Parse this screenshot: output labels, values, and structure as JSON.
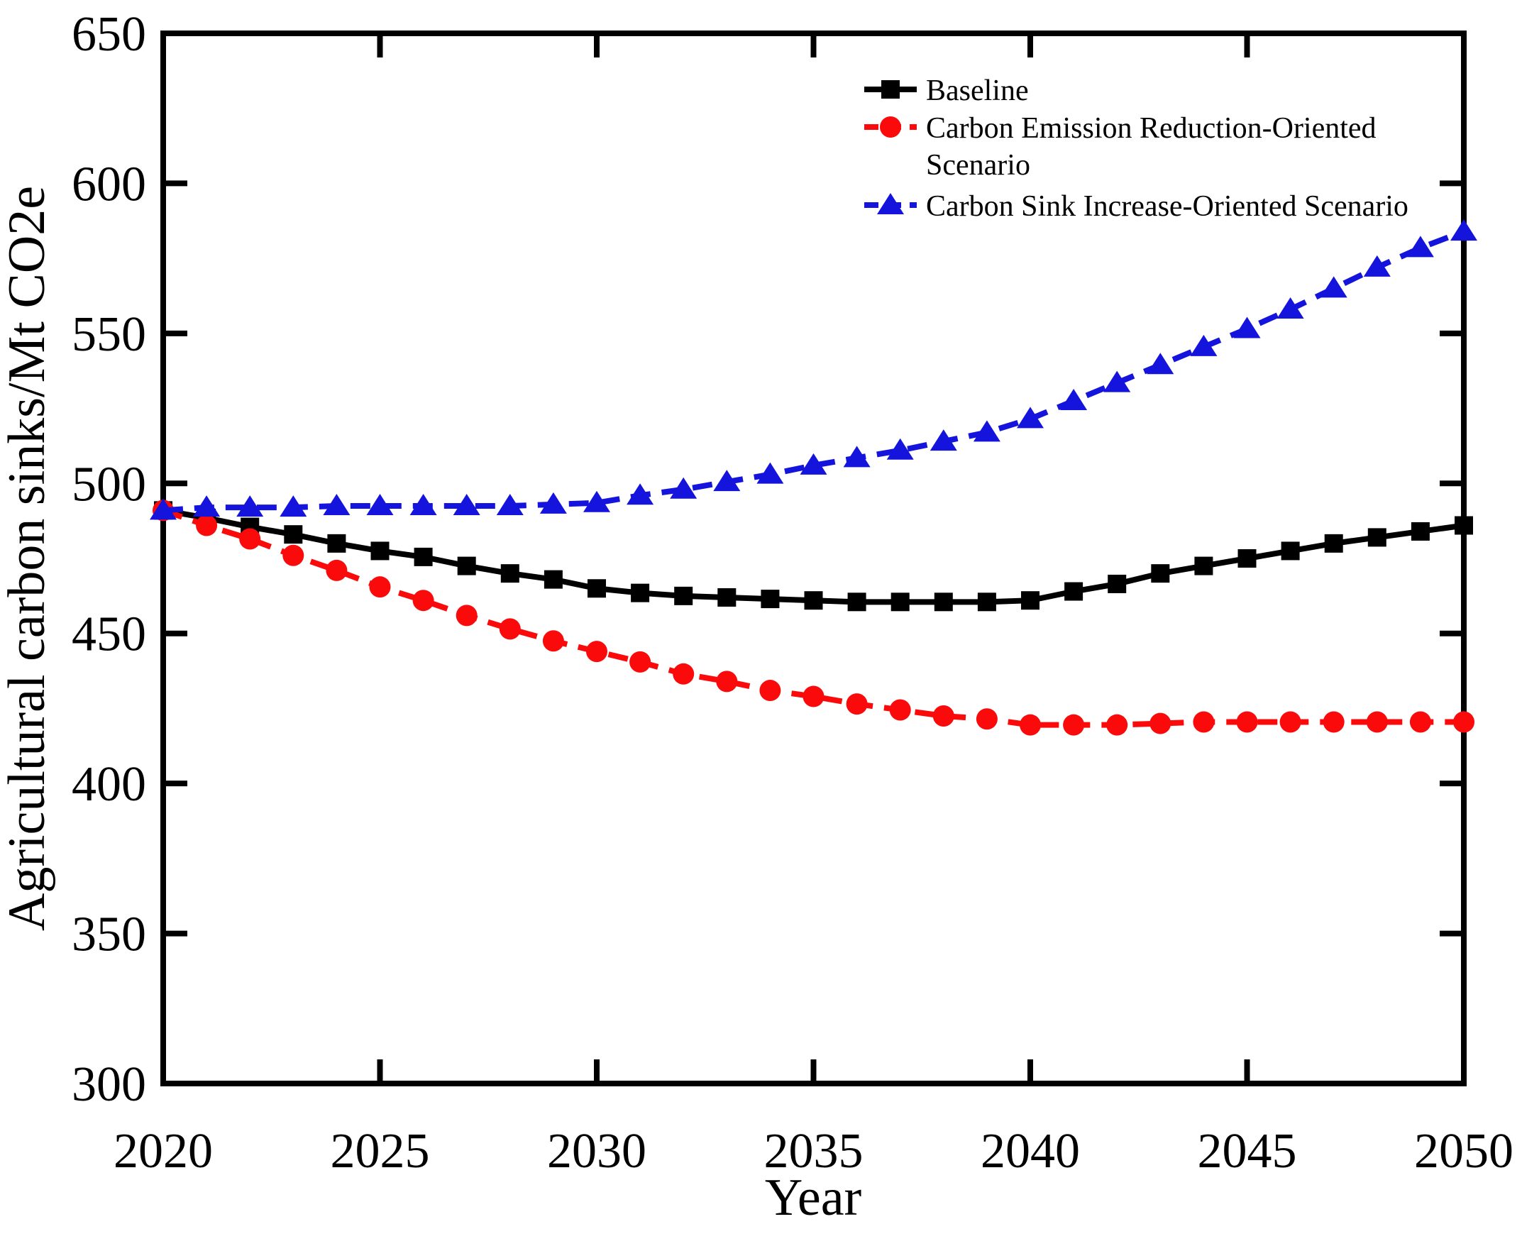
{
  "chart_data": {
    "type": "line",
    "title": "",
    "xlabel": "Year",
    "ylabel": "Agricultural carbon sinks/Mt CO2e",
    "xlim": [
      2020,
      2050
    ],
    "ylim": [
      300,
      650
    ],
    "xticks": [
      2020,
      2025,
      2030,
      2035,
      2040,
      2045,
      2050
    ],
    "yticks": [
      300,
      350,
      400,
      450,
      500,
      550,
      600,
      650
    ],
    "grid": false,
    "tick_direction": "in",
    "legend_position": "upper-right-inside",
    "frame_color": "#000000",
    "x": [
      2020,
      2021,
      2022,
      2023,
      2024,
      2025,
      2026,
      2027,
      2028,
      2029,
      2030,
      2031,
      2032,
      2033,
      2034,
      2035,
      2036,
      2037,
      2038,
      2039,
      2040,
      2041,
      2042,
      2043,
      2044,
      2045,
      2046,
      2047,
      2048,
      2049,
      2050
    ],
    "series": [
      {
        "name": "Baseline",
        "legend_lines": [
          "Baseline"
        ],
        "color": "#000000",
        "marker": "square",
        "line_style": "solid",
        "values": [
          491,
          488.5,
          485.5,
          483,
          480,
          477.5,
          475.5,
          472.5,
          470,
          468,
          465,
          463.5,
          462.5,
          462,
          461.5,
          461,
          460.5,
          460.5,
          460.5,
          460.5,
          461,
          464,
          466.5,
          470,
          472.5,
          475,
          477.5,
          480,
          482,
          484,
          486
        ]
      },
      {
        "name": "Carbon Emission Reduction-Oriented Scenario",
        "legend_lines": [
          "Carbon Emission Reduction-Oriented",
          "Scenario"
        ],
        "color": "#fa0a0a",
        "marker": "circle",
        "line_style": "dashed",
        "values": [
          491,
          486,
          481.5,
          476,
          471,
          465.5,
          461,
          456,
          451.5,
          447.5,
          444,
          440.5,
          436.5,
          434,
          431,
          429,
          426.5,
          424.5,
          422.5,
          421.5,
          419.5,
          419.5,
          419.5,
          420,
          420.5,
          420.5,
          420.5,
          420.5,
          420.5,
          420.5,
          420.5
        ]
      },
      {
        "name": "Carbon Sink Increase-Oriented Scenario",
        "legend_lines": [
          "Carbon Sink Increase-Oriented Scenario"
        ],
        "color": "#1414dd",
        "marker": "triangle",
        "line_style": "dashed",
        "values": [
          491,
          492,
          492,
          492,
          492.5,
          492.5,
          492.5,
          492.5,
          492.5,
          493,
          493.5,
          496,
          498,
          500.5,
          503,
          506,
          508.5,
          511,
          514,
          517,
          521.5,
          527.5,
          533.5,
          539.5,
          545.5,
          551.5,
          558,
          565,
          572,
          578.5,
          584
        ]
      }
    ]
  }
}
